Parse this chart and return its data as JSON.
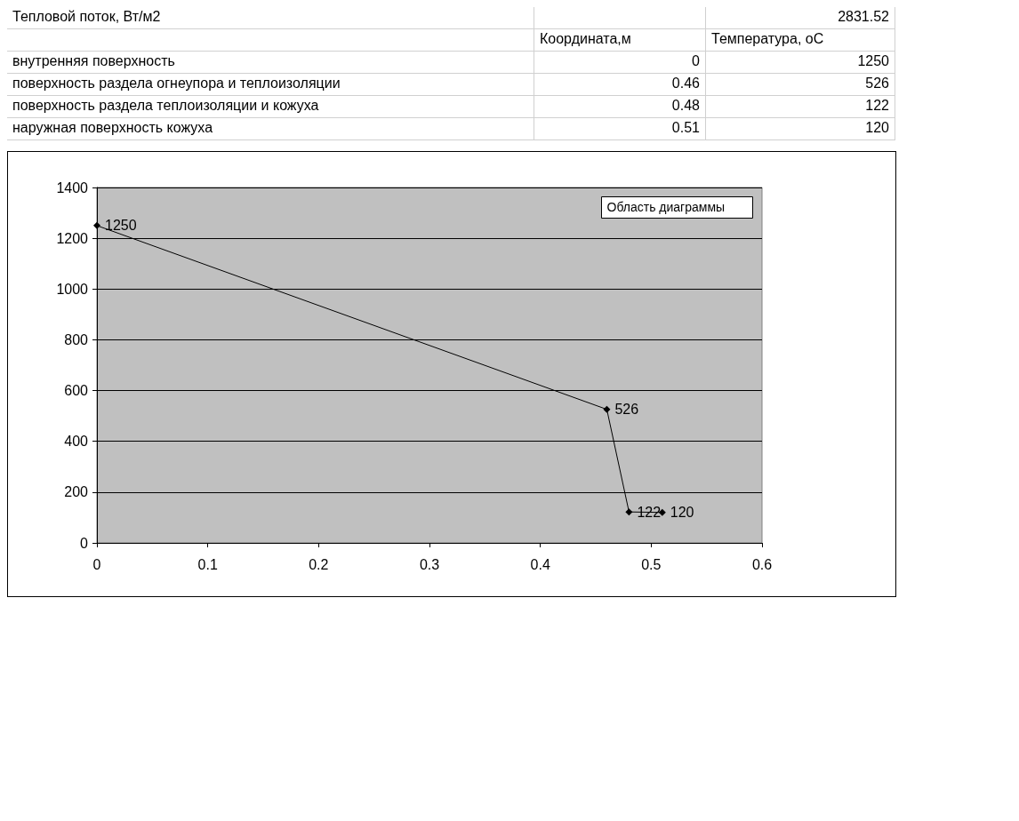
{
  "chart_data": {
    "type": "line",
    "x": [
      0,
      0.46,
      0.48,
      0.51
    ],
    "series": [
      {
        "color": "#000000",
        "values": [
          1250,
          526,
          122,
          120
        ]
      }
    ],
    "xlim": [
      0,
      0.6
    ],
    "xticks": [
      0,
      0.1,
      0.2,
      0.3,
      0.4,
      0.5,
      0.6
    ],
    "ylim": [
      0,
      1400
    ],
    "yticks": [
      0,
      200,
      400,
      600,
      800,
      1000,
      1200,
      1400
    ],
    "grid": "y",
    "marker": "diamond",
    "line_style": "solid",
    "data_labels": true,
    "annotations": [
      "Тепловой поток, Вт/м2",
      "2831.52",
      "Координата,м",
      "Температура, оС",
      "внутренняя поверхность",
      "0",
      "1250",
      "поверхность раздела огнеупора и теплоизоляции",
      "0.46",
      "526",
      "поверхность раздела теплоизоляции и кожуха",
      "0.48",
      "122",
      "наружная поверхность кожуха",
      "0.51",
      "120",
      "Область диаграммы"
    ]
  }
}
